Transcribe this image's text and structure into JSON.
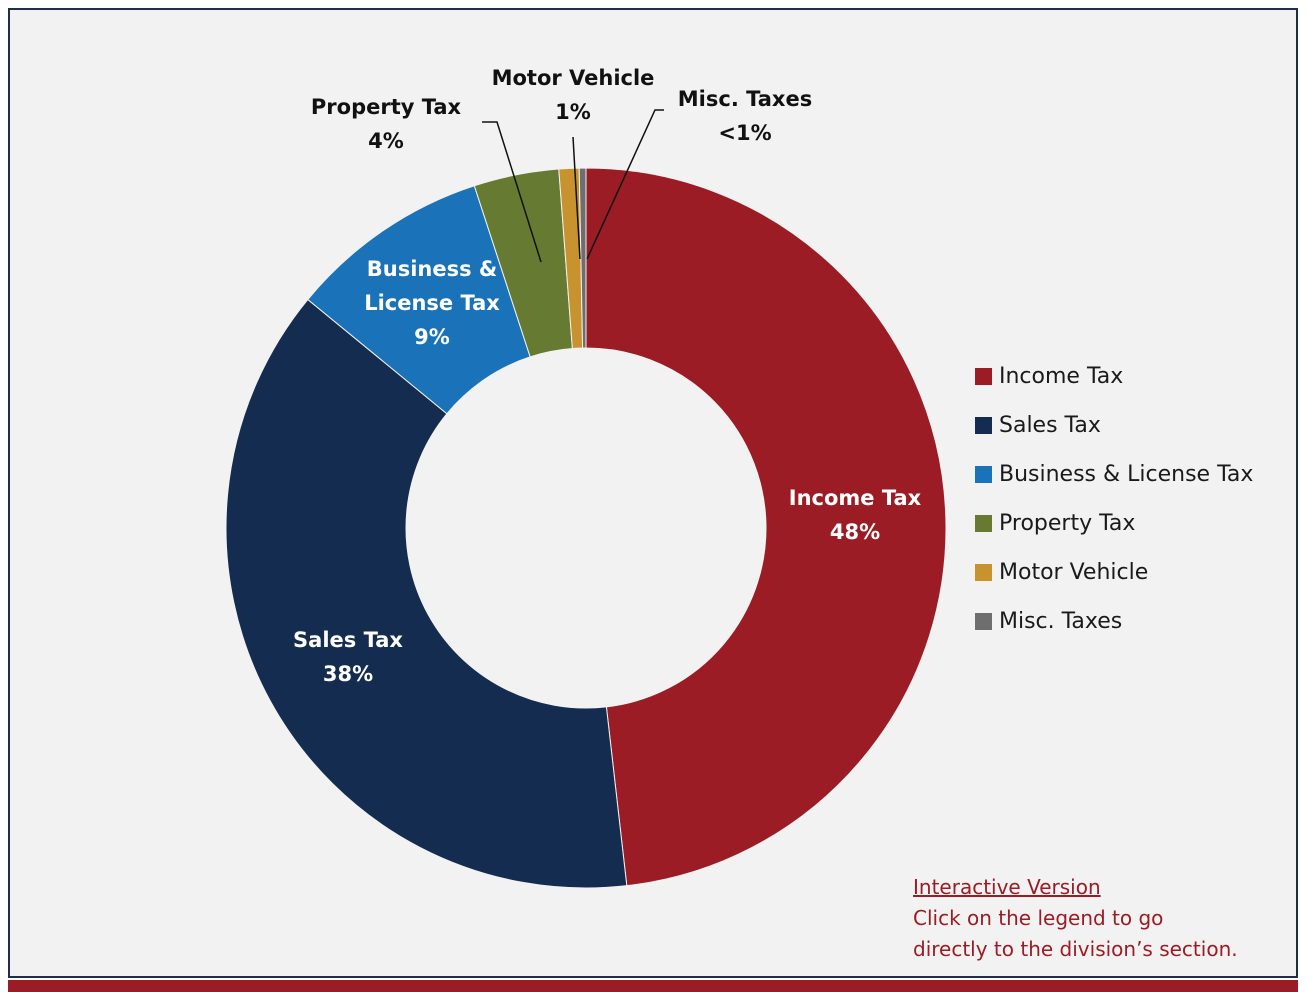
{
  "colors": {
    "frame_border": "#1f2f4a",
    "background": "#f2f2f2",
    "accent_bar": "#9b1c24",
    "note_text": "#9b1c24"
  },
  "chart_data": {
    "type": "pie",
    "donut": true,
    "title": "",
    "slices": [
      {
        "name": "Income Tax",
        "value": 48.0,
        "label_lines": [
          "Income Tax",
          "48%"
        ],
        "color": "#9b1c24",
        "label_color": "#ffffff",
        "label_placement": "inside"
      },
      {
        "name": "Sales Tax",
        "value": 37.6,
        "label_lines": [
          "Sales Tax",
          "38%"
        ],
        "color": "#142c4f",
        "label_color": "#ffffff",
        "label_placement": "inside"
      },
      {
        "name": "Business & License Tax",
        "value": 9.0,
        "label_lines": [
          "Business &",
          "License Tax",
          "9%"
        ],
        "color": "#1a72b8",
        "label_color": "#ffffff",
        "label_placement": "inside"
      },
      {
        "name": "Property Tax",
        "value": 3.8,
        "label_lines": [
          "Property Tax",
          "4%"
        ],
        "color": "#667a32",
        "label_color": "#111111",
        "label_placement": "outside"
      },
      {
        "name": "Motor Vehicle",
        "value": 0.9,
        "label_lines": [
          "Motor Vehicle",
          "1%"
        ],
        "color": "#c8922f",
        "label_color": "#111111",
        "label_placement": "outside"
      },
      {
        "name": "Misc. Taxes",
        "value": 0.3,
        "label_lines": [
          "Misc. Taxes",
          "<1%"
        ],
        "color": "#6e6e6e",
        "label_color": "#111111",
        "label_placement": "outside"
      }
    ],
    "legend": {
      "position": "right",
      "items": [
        {
          "label": "Income Tax",
          "color": "#9b1c24"
        },
        {
          "label": "Sales Tax",
          "color": "#142c4f"
        },
        {
          "label": "Business & License Tax",
          "color": "#1a72b8"
        },
        {
          "label": "Property Tax",
          "color": "#667a32"
        },
        {
          "label": "Motor Vehicle",
          "color": "#c8922f"
        },
        {
          "label": "Misc. Taxes",
          "color": "#6e6e6e"
        }
      ]
    }
  },
  "note": {
    "link_text": "Interactive Version",
    "line1": "Click on the legend to go",
    "line2": "directly to the division’s section."
  }
}
